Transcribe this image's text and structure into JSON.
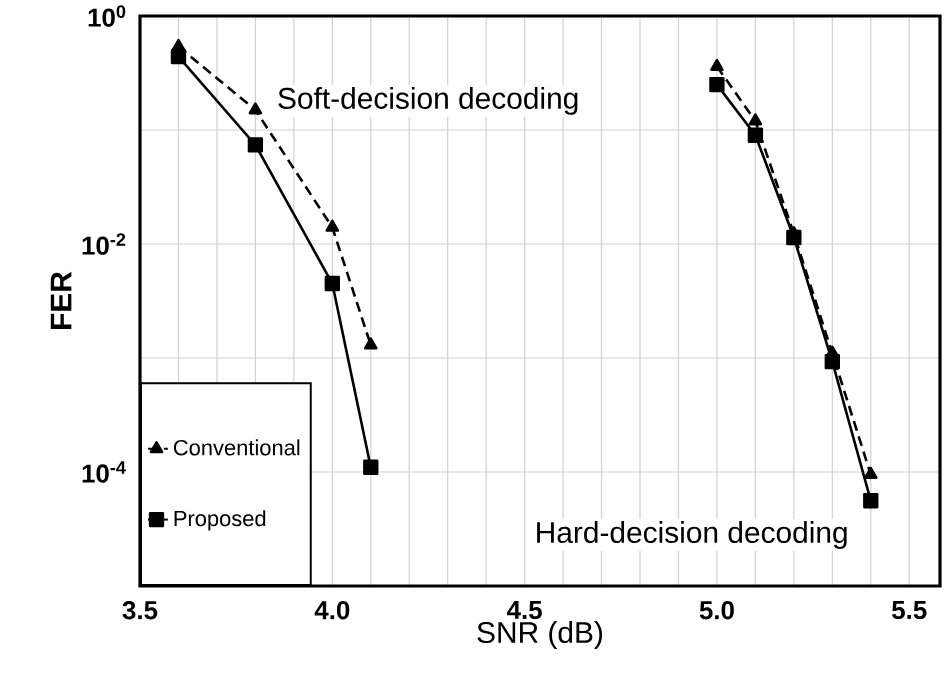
{
  "chart_data": {
    "type": "line",
    "xlabel": "SNR (dB)",
    "ylabel": "FER",
    "log": "y",
    "grid": true,
    "legend": "bottom left",
    "xlim": [
      3.5,
      5.58
    ],
    "xticks": [
      {
        "value": 3.5,
        "label": "3.5"
      },
      {
        "value": 3.6,
        "label": null
      },
      {
        "value": 3.7,
        "label": null
      },
      {
        "value": 3.8,
        "label": null
      },
      {
        "value": 3.9,
        "label": null
      },
      {
        "value": 4.0,
        "label": "4.0"
      },
      {
        "value": 4.1,
        "label": null
      },
      {
        "value": 4.2,
        "label": null
      },
      {
        "value": 4.3,
        "label": null
      },
      {
        "value": 4.4,
        "label": null
      },
      {
        "value": 4.5,
        "label": "4.5"
      },
      {
        "value": 4.6,
        "label": null
      },
      {
        "value": 4.7,
        "label": null
      },
      {
        "value": 4.8,
        "label": null
      },
      {
        "value": 4.9,
        "label": null
      },
      {
        "value": 5.0,
        "label": "5.0"
      },
      {
        "value": 5.1,
        "label": null
      },
      {
        "value": 5.2,
        "label": null
      },
      {
        "value": 5.3,
        "label": null
      },
      {
        "value": 5.4,
        "label": null
      },
      {
        "value": 5.5,
        "label": "5.5"
      }
    ],
    "ylim": [
      1e-05,
      1
    ],
    "yticks": [
      {
        "value": 1,
        "label": "10$^{0}$"
      },
      {
        "value": 0.1,
        "label": null
      },
      {
        "value": 0.01,
        "label": "10$^{-2}$"
      },
      {
        "value": 0.001,
        "label": null
      },
      {
        "value": 0.0001,
        "label": "10$^{-4}$"
      },
      {
        "value": 1e-05,
        "label": null
      }
    ],
    "annotations": [
      "Soft-decision decoding",
      "Hard-decision decoding"
    ],
    "series": [
      {
        "name": "Conventional",
        "color": "#000000",
        "marker": "triangle",
        "line_style": "dashed",
        "x": [
          3.6,
          3.8,
          4.0,
          4.1
        ],
        "values": [
          0.54,
          0.15,
          0.014,
          0.0013
        ]
      },
      {
        "name": "Proposed",
        "color": "#000000",
        "marker": "square",
        "line_style": "solid",
        "x": [
          3.6,
          3.8,
          4.0,
          4.1
        ],
        "values": [
          0.44,
          0.074,
          0.0045,
          0.00011
        ]
      },
      {
        "color": "#000000",
        "marker": "square",
        "line_style": "solid",
        "x": [
          5.0,
          5.1,
          5.2,
          5.3,
          5.4
        ],
        "values": [
          0.25,
          0.09,
          0.0114,
          0.00093,
          5.6e-05
        ]
      },
      {
        "color": "#000000",
        "marker": "triangle",
        "line_style": "dashed",
        "x": [
          5.0,
          5.1,
          5.2,
          5.3,
          5.4
        ],
        "values": [
          0.36,
          0.12,
          0.0123,
          0.0011,
          9.5e-05
        ]
      }
    ]
  }
}
